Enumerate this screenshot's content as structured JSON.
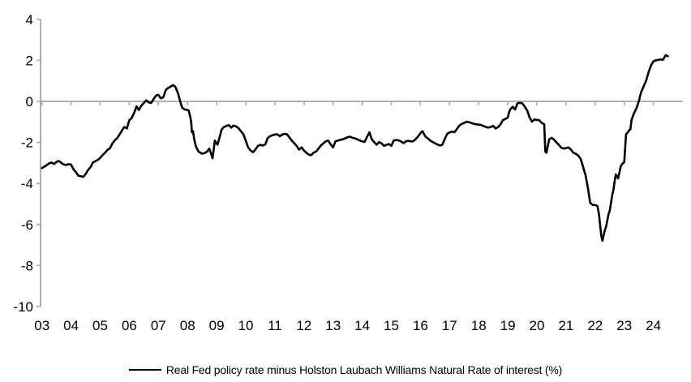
{
  "legend": {
    "label": "Real Fed policy rate minus Holston Laubach Williams Natural Rate of interest (%)"
  },
  "colors": {
    "line": "#000000",
    "axis": "#a6a6a6",
    "background": "#ffffff",
    "text": "#000000"
  },
  "chart_data": {
    "type": "line",
    "title": "",
    "xlabel": "",
    "ylabel": "",
    "ylim": [
      -10,
      4
    ],
    "xlim_years": [
      2003,
      2024.6
    ],
    "grid": "zero-line-only",
    "legend_position": "bottom-center",
    "y_ticks": [
      4,
      2,
      0,
      -2,
      -4,
      -6,
      -8,
      -10
    ],
    "x_ticks": [
      {
        "year": 2003,
        "label": "03"
      },
      {
        "year": 2004,
        "label": "04"
      },
      {
        "year": 2005,
        "label": "05"
      },
      {
        "year": 2006,
        "label": "06"
      },
      {
        "year": 2007,
        "label": "07"
      },
      {
        "year": 2008,
        "label": "08"
      },
      {
        "year": 2009,
        "label": "09"
      },
      {
        "year": 2010,
        "label": "10"
      },
      {
        "year": 2011,
        "label": "11"
      },
      {
        "year": 2012,
        "label": "12"
      },
      {
        "year": 2013,
        "label": "13"
      },
      {
        "year": 2014,
        "label": "14"
      },
      {
        "year": 2015,
        "label": "15"
      },
      {
        "year": 2016,
        "label": "16"
      },
      {
        "year": 2017,
        "label": "17"
      },
      {
        "year": 2018,
        "label": "18"
      },
      {
        "year": 2019,
        "label": "19"
      },
      {
        "year": 2020,
        "label": "20"
      },
      {
        "year": 2021,
        "label": "21"
      },
      {
        "year": 2022,
        "label": "22"
      },
      {
        "year": 2023,
        "label": "23"
      },
      {
        "year": 2024,
        "label": "24"
      }
    ],
    "series": [
      {
        "name": "Real Fed policy rate minus Holston Laubach Williams Natural Rate of interest (%)",
        "color": "#000000",
        "points": [
          [
            2003.0,
            -3.25
          ],
          [
            2003.08,
            -3.18
          ],
          [
            2003.17,
            -3.1
          ],
          [
            2003.25,
            -3.02
          ],
          [
            2003.33,
            -2.98
          ],
          [
            2003.42,
            -3.05
          ],
          [
            2003.5,
            -2.95
          ],
          [
            2003.58,
            -2.9
          ],
          [
            2003.67,
            -3.0
          ],
          [
            2003.75,
            -3.08
          ],
          [
            2003.83,
            -3.1
          ],
          [
            2003.92,
            -3.06
          ],
          [
            2004.0,
            -3.08
          ],
          [
            2004.08,
            -3.3
          ],
          [
            2004.17,
            -3.45
          ],
          [
            2004.25,
            -3.62
          ],
          [
            2004.33,
            -3.65
          ],
          [
            2004.42,
            -3.68
          ],
          [
            2004.5,
            -3.55
          ],
          [
            2004.58,
            -3.35
          ],
          [
            2004.67,
            -3.2
          ],
          [
            2004.75,
            -2.98
          ],
          [
            2004.83,
            -2.92
          ],
          [
            2004.92,
            -2.85
          ],
          [
            2005.0,
            -2.75
          ],
          [
            2005.08,
            -2.62
          ],
          [
            2005.17,
            -2.5
          ],
          [
            2005.25,
            -2.36
          ],
          [
            2005.33,
            -2.3
          ],
          [
            2005.42,
            -2.05
          ],
          [
            2005.5,
            -1.9
          ],
          [
            2005.58,
            -1.8
          ],
          [
            2005.67,
            -1.6
          ],
          [
            2005.75,
            -1.42
          ],
          [
            2005.83,
            -1.25
          ],
          [
            2005.92,
            -1.32
          ],
          [
            2006.0,
            -0.92
          ],
          [
            2006.08,
            -0.82
          ],
          [
            2006.17,
            -0.55
          ],
          [
            2006.25,
            -0.24
          ],
          [
            2006.33,
            -0.42
          ],
          [
            2006.42,
            -0.2
          ],
          [
            2006.5,
            -0.08
          ],
          [
            2006.58,
            0.05
          ],
          [
            2006.67,
            -0.05
          ],
          [
            2006.75,
            -0.08
          ],
          [
            2006.83,
            0.1
          ],
          [
            2006.92,
            0.28
          ],
          [
            2007.0,
            0.32
          ],
          [
            2007.08,
            0.15
          ],
          [
            2007.17,
            0.2
          ],
          [
            2007.25,
            0.55
          ],
          [
            2007.33,
            0.65
          ],
          [
            2007.42,
            0.72
          ],
          [
            2007.5,
            0.8
          ],
          [
            2007.54,
            0.75
          ],
          [
            2007.58,
            0.72
          ],
          [
            2007.67,
            0.4
          ],
          [
            2007.75,
            0.0
          ],
          [
            2007.79,
            -0.2
          ],
          [
            2007.83,
            -0.33
          ],
          [
            2007.92,
            -0.4
          ],
          [
            2008.0,
            -0.42
          ],
          [
            2008.04,
            -0.45
          ],
          [
            2008.1,
            -0.79
          ],
          [
            2008.13,
            -1.05
          ],
          [
            2008.15,
            -1.51
          ],
          [
            2008.19,
            -1.45
          ],
          [
            2008.23,
            -1.85
          ],
          [
            2008.29,
            -2.2
          ],
          [
            2008.38,
            -2.45
          ],
          [
            2008.5,
            -2.55
          ],
          [
            2008.58,
            -2.52
          ],
          [
            2008.67,
            -2.45
          ],
          [
            2008.75,
            -2.3
          ],
          [
            2008.86,
            -2.77
          ],
          [
            2008.94,
            -1.91
          ],
          [
            2009.03,
            -2.11
          ],
          [
            2009.08,
            -1.85
          ],
          [
            2009.17,
            -1.38
          ],
          [
            2009.25,
            -1.25
          ],
          [
            2009.33,
            -1.2
          ],
          [
            2009.42,
            -1.16
          ],
          [
            2009.5,
            -1.28
          ],
          [
            2009.58,
            -1.18
          ],
          [
            2009.67,
            -1.22
          ],
          [
            2009.75,
            -1.3
          ],
          [
            2009.83,
            -1.45
          ],
          [
            2009.92,
            -1.6
          ],
          [
            2010.0,
            -1.91
          ],
          [
            2010.08,
            -2.24
          ],
          [
            2010.17,
            -2.4
          ],
          [
            2010.25,
            -2.48
          ],
          [
            2010.33,
            -2.35
          ],
          [
            2010.42,
            -2.17
          ],
          [
            2010.5,
            -2.12
          ],
          [
            2010.58,
            -2.15
          ],
          [
            2010.67,
            -2.1
          ],
          [
            2010.75,
            -1.8
          ],
          [
            2010.83,
            -1.7
          ],
          [
            2010.92,
            -1.65
          ],
          [
            2011.0,
            -1.62
          ],
          [
            2011.08,
            -1.6
          ],
          [
            2011.17,
            -1.7
          ],
          [
            2011.25,
            -1.62
          ],
          [
            2011.33,
            -1.58
          ],
          [
            2011.42,
            -1.61
          ],
          [
            2011.5,
            -1.75
          ],
          [
            2011.58,
            -1.91
          ],
          [
            2011.67,
            -2.05
          ],
          [
            2011.75,
            -2.17
          ],
          [
            2011.83,
            -2.35
          ],
          [
            2011.92,
            -2.24
          ],
          [
            2012.0,
            -2.4
          ],
          [
            2012.08,
            -2.5
          ],
          [
            2012.17,
            -2.6
          ],
          [
            2012.25,
            -2.62
          ],
          [
            2012.33,
            -2.5
          ],
          [
            2012.42,
            -2.44
          ],
          [
            2012.5,
            -2.3
          ],
          [
            2012.58,
            -2.15
          ],
          [
            2012.67,
            -2.04
          ],
          [
            2012.75,
            -1.95
          ],
          [
            2012.83,
            -1.91
          ],
          [
            2012.92,
            -2.1
          ],
          [
            2013.0,
            -2.24
          ],
          [
            2013.08,
            -1.95
          ],
          [
            2013.17,
            -1.91
          ],
          [
            2013.25,
            -1.87
          ],
          [
            2013.33,
            -1.85
          ],
          [
            2013.42,
            -1.8
          ],
          [
            2013.5,
            -1.75
          ],
          [
            2013.58,
            -1.72
          ],
          [
            2013.67,
            -1.78
          ],
          [
            2013.75,
            -1.8
          ],
          [
            2013.83,
            -1.85
          ],
          [
            2013.92,
            -1.91
          ],
          [
            2014.0,
            -1.95
          ],
          [
            2014.08,
            -1.98
          ],
          [
            2014.17,
            -1.71
          ],
          [
            2014.25,
            -1.51
          ],
          [
            2014.33,
            -1.85
          ],
          [
            2014.42,
            -2.0
          ],
          [
            2014.5,
            -2.11
          ],
          [
            2014.58,
            -1.98
          ],
          [
            2014.67,
            -2.05
          ],
          [
            2014.75,
            -2.17
          ],
          [
            2014.83,
            -2.12
          ],
          [
            2014.92,
            -2.08
          ],
          [
            2015.0,
            -2.17
          ],
          [
            2015.08,
            -1.91
          ],
          [
            2015.17,
            -1.88
          ],
          [
            2015.25,
            -1.9
          ],
          [
            2015.33,
            -1.95
          ],
          [
            2015.42,
            -2.04
          ],
          [
            2015.5,
            -1.95
          ],
          [
            2015.58,
            -1.92
          ],
          [
            2015.67,
            -1.95
          ],
          [
            2015.75,
            -1.95
          ],
          [
            2015.83,
            -1.85
          ],
          [
            2015.92,
            -1.71
          ],
          [
            2016.0,
            -1.55
          ],
          [
            2016.07,
            -1.45
          ],
          [
            2016.17,
            -1.71
          ],
          [
            2016.25,
            -1.8
          ],
          [
            2016.33,
            -1.9
          ],
          [
            2016.42,
            -1.98
          ],
          [
            2016.5,
            -2.04
          ],
          [
            2016.58,
            -2.1
          ],
          [
            2016.67,
            -2.15
          ],
          [
            2016.75,
            -2.12
          ],
          [
            2016.83,
            -1.85
          ],
          [
            2016.92,
            -1.58
          ],
          [
            2017.0,
            -1.51
          ],
          [
            2017.08,
            -1.48
          ],
          [
            2017.17,
            -1.5
          ],
          [
            2017.25,
            -1.35
          ],
          [
            2017.33,
            -1.19
          ],
          [
            2017.42,
            -1.09
          ],
          [
            2017.5,
            -1.05
          ],
          [
            2017.58,
            -0.99
          ],
          [
            2017.67,
            -1.02
          ],
          [
            2017.75,
            -1.05
          ],
          [
            2017.83,
            -1.09
          ],
          [
            2017.92,
            -1.12
          ],
          [
            2018.0,
            -1.13
          ],
          [
            2018.08,
            -1.15
          ],
          [
            2018.17,
            -1.2
          ],
          [
            2018.25,
            -1.25
          ],
          [
            2018.33,
            -1.28
          ],
          [
            2018.42,
            -1.25
          ],
          [
            2018.5,
            -1.19
          ],
          [
            2018.58,
            -1.32
          ],
          [
            2018.67,
            -1.25
          ],
          [
            2018.75,
            -1.12
          ],
          [
            2018.83,
            -0.92
          ],
          [
            2018.92,
            -0.85
          ],
          [
            2019.0,
            -0.79
          ],
          [
            2019.04,
            -0.55
          ],
          [
            2019.08,
            -0.4
          ],
          [
            2019.17,
            -0.26
          ],
          [
            2019.25,
            -0.4
          ],
          [
            2019.33,
            -0.1
          ],
          [
            2019.42,
            -0.07
          ],
          [
            2019.5,
            -0.1
          ],
          [
            2019.58,
            -0.25
          ],
          [
            2019.67,
            -0.46
          ],
          [
            2019.75,
            -0.79
          ],
          [
            2019.83,
            -0.99
          ],
          [
            2019.92,
            -0.88
          ],
          [
            2020.0,
            -0.9
          ],
          [
            2020.08,
            -0.92
          ],
          [
            2020.17,
            -1.05
          ],
          [
            2020.25,
            -1.12
          ],
          [
            2020.29,
            -2.45
          ],
          [
            2020.33,
            -2.5
          ],
          [
            2020.42,
            -1.85
          ],
          [
            2020.5,
            -1.78
          ],
          [
            2020.58,
            -1.85
          ],
          [
            2020.67,
            -2.0
          ],
          [
            2020.75,
            -2.11
          ],
          [
            2020.83,
            -2.25
          ],
          [
            2020.92,
            -2.3
          ],
          [
            2021.0,
            -2.28
          ],
          [
            2021.08,
            -2.24
          ],
          [
            2021.17,
            -2.35
          ],
          [
            2021.25,
            -2.5
          ],
          [
            2021.33,
            -2.55
          ],
          [
            2021.42,
            -2.64
          ],
          [
            2021.5,
            -2.8
          ],
          [
            2021.58,
            -3.16
          ],
          [
            2021.67,
            -3.6
          ],
          [
            2021.75,
            -4.2
          ],
          [
            2021.83,
            -4.94
          ],
          [
            2021.92,
            -5.05
          ],
          [
            2022.0,
            -5.05
          ],
          [
            2022.08,
            -5.1
          ],
          [
            2022.13,
            -5.5
          ],
          [
            2022.17,
            -6.0
          ],
          [
            2022.21,
            -6.52
          ],
          [
            2022.25,
            -6.79
          ],
          [
            2022.33,
            -6.3
          ],
          [
            2022.38,
            -6.1
          ],
          [
            2022.46,
            -5.5
          ],
          [
            2022.5,
            -5.34
          ],
          [
            2022.58,
            -4.62
          ],
          [
            2022.63,
            -4.3
          ],
          [
            2022.67,
            -3.88
          ],
          [
            2022.71,
            -3.56
          ],
          [
            2022.79,
            -3.75
          ],
          [
            2022.88,
            -3.16
          ],
          [
            2022.96,
            -3.0
          ],
          [
            2023.0,
            -2.96
          ],
          [
            2023.06,
            -1.6
          ],
          [
            2023.13,
            -1.5
          ],
          [
            2023.17,
            -1.4
          ],
          [
            2023.21,
            -1.38
          ],
          [
            2023.25,
            -0.9
          ],
          [
            2023.33,
            -0.6
          ],
          [
            2023.42,
            -0.33
          ],
          [
            2023.5,
            0.0
          ],
          [
            2023.58,
            0.45
          ],
          [
            2023.67,
            0.75
          ],
          [
            2023.75,
            1.0
          ],
          [
            2023.83,
            1.4
          ],
          [
            2023.92,
            1.75
          ],
          [
            2024.0,
            1.95
          ],
          [
            2024.08,
            2.0
          ],
          [
            2024.17,
            2.02
          ],
          [
            2024.25,
            2.05
          ],
          [
            2024.33,
            2.02
          ],
          [
            2024.42,
            2.25
          ],
          [
            2024.5,
            2.2
          ]
        ]
      }
    ]
  }
}
